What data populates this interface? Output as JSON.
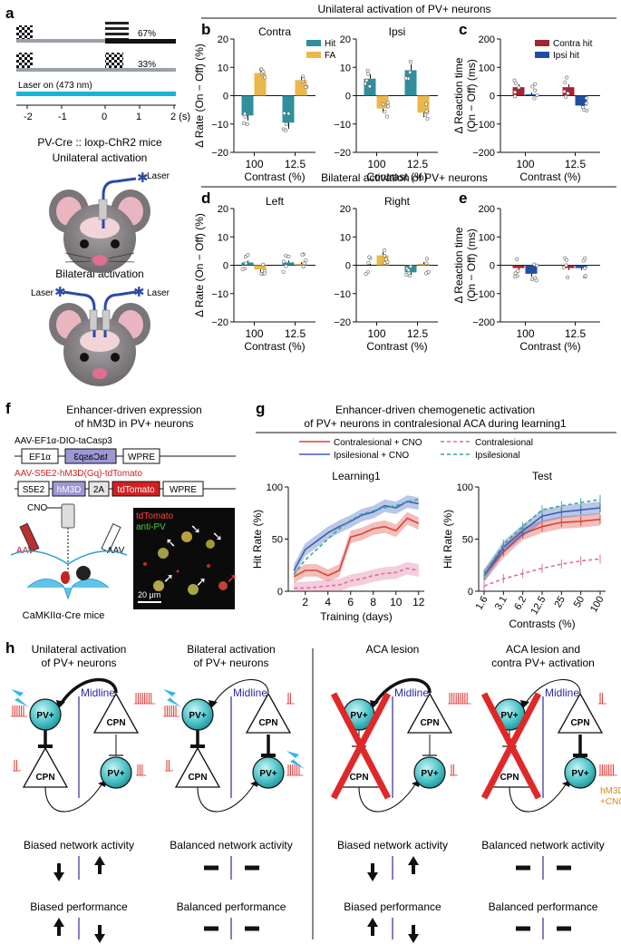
{
  "panel_labels": {
    "a": "a",
    "b": "b",
    "c": "c",
    "d": "d",
    "e": "e",
    "f": "f",
    "g": "g",
    "h": "h"
  },
  "panel_a": {
    "pct_top": "67%",
    "pct_bottom": "33%",
    "laser_label": "Laser on (473 nm)",
    "ticks": [
      "-2",
      "-1",
      "0",
      "1",
      "2 (s)"
    ],
    "title": "PV-Cre :: loxp-ChR2 mice",
    "unilateral_label": "Unilateral activation",
    "laser_text": "Laser",
    "bilateral_label": "Bilateral activation",
    "colors": {
      "laser": "#18b4d8",
      "stim_bar": "#111111",
      "gray_bar": "#9aa0a8"
    }
  },
  "header_unilateral": "Unilateral activation of PV+ neurons",
  "header_bilateral": "Bilateral activation of PV+ neurons",
  "chart_data": [
    {
      "panel": "b",
      "type": "bar",
      "title": "Contra",
      "categories": [
        "100",
        "12.5"
      ],
      "series": [
        {
          "name": "Hit",
          "values": [
            -7,
            -9.5
          ]
        },
        {
          "name": "FA",
          "values": [
            8,
            5.5
          ]
        }
      ],
      "xlabel": "Contrast (%)",
      "ylabel": "Δ Rate (On − Off) (%)",
      "ylim": [
        -20,
        20
      ],
      "yticks": [
        "20",
        "10",
        "0",
        "−10",
        "−20"
      ]
    },
    {
      "panel": "b",
      "type": "bar",
      "title": "Ipsi",
      "categories": [
        "100",
        "12.5"
      ],
      "series": [
        {
          "name": "Hit",
          "values": [
            6,
            9
          ]
        },
        {
          "name": "FA",
          "values": [
            -4.5,
            -6
          ]
        }
      ],
      "xlabel": "Contrast (%)",
      "ylim": [
        -20,
        20
      ],
      "yticks": [
        "20",
        "10",
        "0",
        "−10",
        "−20"
      ]
    },
    {
      "panel": "c",
      "type": "bar",
      "categories": [
        "100",
        "12.5"
      ],
      "series": [
        {
          "name": "Contra hit",
          "values": [
            30,
            30
          ]
        },
        {
          "name": "Ipsi hit",
          "values": [
            5,
            -35
          ]
        }
      ],
      "xlabel": "Contrast (%)",
      "ylabel": "Δ Reaction time (On − Off) (ms)",
      "ylim": [
        -200,
        200
      ],
      "yticks": [
        "200",
        "100",
        "0",
        "−100",
        "−200"
      ]
    },
    {
      "panel": "d",
      "type": "bar",
      "title": "Left",
      "categories": [
        "100",
        "12.5"
      ],
      "series": [
        {
          "values": [
            1,
            1
          ]
        },
        {
          "values": [
            -1.5,
            0.5
          ]
        }
      ],
      "xlabel": "Contrast (%)",
      "ylabel": "Δ Rate (On − Off) (%)",
      "ylim": [
        -20,
        20
      ],
      "yticks": [
        "20",
        "10",
        "0",
        "−10",
        "−20"
      ]
    },
    {
      "panel": "d",
      "type": "bar",
      "title": "Right",
      "categories": [
        "100",
        "12.5"
      ],
      "series": [
        {
          "values": [
            0,
            -2.5
          ]
        },
        {
          "values": [
            3.5,
            0.5
          ]
        }
      ],
      "xlabel": "Contrast (%)",
      "ylim": [
        -20,
        20
      ],
      "yticks": [
        "20",
        "10",
        "0",
        "−10",
        "−20"
      ]
    },
    {
      "panel": "e",
      "type": "bar",
      "categories": [
        "100",
        "12.5"
      ],
      "series": [
        {
          "values": [
            -10,
            -10
          ]
        },
        {
          "values": [
            -30,
            -10
          ]
        }
      ],
      "xlabel": "Contrast (%)",
      "ylabel": "Δ Reaction time (On − Off) (ms)",
      "ylim": [
        -200,
        200
      ],
      "yticks": [
        "200",
        "100",
        "0",
        "−100",
        "−200"
      ]
    },
    {
      "panel": "g",
      "type": "line",
      "title": "Learning1",
      "x": [
        1,
        2,
        3,
        4,
        5,
        6,
        7,
        8,
        9,
        10,
        11,
        12
      ],
      "series": [
        {
          "name": "Contralesional + CNO",
          "values": [
            14,
            20,
            20,
            15,
            20,
            52,
            55,
            60,
            62,
            58,
            70,
            65
          ]
        },
        {
          "name": "Ipsilesional + CNO",
          "values": [
            20,
            40,
            48,
            56,
            62,
            67,
            73,
            76,
            82,
            80,
            86,
            84
          ]
        },
        {
          "name": "Contralesional",
          "values": [
            3,
            3,
            4,
            5,
            6,
            10,
            12,
            15,
            17,
            18,
            22,
            20
          ]
        },
        {
          "name": "Ipsilesional",
          "values": [
            16,
            30,
            40,
            50,
            60,
            68,
            74,
            77,
            80,
            82,
            86,
            88
          ]
        }
      ],
      "xlabel": "Training (days)",
      "ylabel": "Hit Rate (%)",
      "ylim": [
        0,
        100
      ],
      "xticks": [
        "2",
        "4",
        "6",
        "8",
        "10",
        "12"
      ],
      "yticks": [
        "100",
        "50",
        "0"
      ]
    },
    {
      "panel": "g",
      "type": "line",
      "title": "Test",
      "categories": [
        "1.6",
        "3.1",
        "6.2",
        "12.5",
        "25",
        "50",
        "100"
      ],
      "series": [
        {
          "name": "Contralesional + CNO",
          "values": [
            15,
            38,
            55,
            62,
            66,
            67,
            69
          ]
        },
        {
          "name": "Ipsilesional + CNO",
          "values": [
            15,
            42,
            58,
            72,
            76,
            78,
            80
          ]
        },
        {
          "name": "Contralesional",
          "values": [
            5,
            12,
            17,
            22,
            26,
            29,
            31
          ]
        },
        {
          "name": "Ipsilesional",
          "values": [
            16,
            45,
            62,
            78,
            82,
            85,
            88
          ]
        }
      ],
      "xlabel": "Contrasts (%)",
      "ylabel": "Hit Rate (%)",
      "ylim": [
        0,
        100
      ],
      "yticks": [
        "100",
        "50",
        "0"
      ]
    }
  ],
  "legend_c": [
    "Contra hit",
    "Ipsi hit"
  ],
  "legend_b": [
    "Hit",
    "FA"
  ],
  "panel_f": {
    "title1": "Enhancer-driven expression",
    "title2": "of hM3D in PV+ neurons",
    "aav1": "AAV-EF1α-DIO-taCasp3",
    "ef1a": "EF1α",
    "tacasp3": "taCasp3",
    "wpre": "WPRE",
    "aav2": "AAV-S5E2-hM3D(Gq)-tdTomato",
    "s5e2": "S5E2",
    "hm3d": "hM3D",
    "p2a": "2A",
    "tdtomato": "tdTomato",
    "cno": "CNO",
    "aav": "AAV",
    "mice": "CaMKIIα-Cre mice",
    "micro_red": "tdTomato",
    "micro_green": "anti-PV",
    "scale": "20 μm"
  },
  "panel_g": {
    "title1": "Enhancer-driven chemogenetic activation",
    "title2": "of PV+ neurons in contralesional ACA during learning1",
    "legend": [
      "Contralesional + CNO",
      "Contralesional",
      "Ipsilesional + CNO",
      "Ipsilesional"
    ],
    "colors": {
      "contra": "#d9443a",
      "ipsi": "#3a5fb5",
      "contra_dash": "#d9709a",
      "ipsi_dash": "#36a6a6"
    }
  },
  "panel_h": {
    "titles": [
      [
        "Unilateral activation",
        "of PV+ neurons"
      ],
      [
        "Bilateral activation",
        "of PV+ neurons"
      ],
      [
        "ACA lesion",
        ""
      ],
      [
        "ACA lesion and",
        "contra PV+ activation"
      ]
    ],
    "midline": "Midline",
    "pv": "PV+",
    "cpn": "CPN",
    "hm3d": "hM3D",
    "cno": "+CNO",
    "net": [
      "Biased network activity",
      "Balanced network activity",
      "Biased network activity",
      "Balanced network activity"
    ],
    "perf": [
      "Biased performance",
      "Balanced performance",
      "Biased performance",
      "Balanced performance"
    ]
  }
}
